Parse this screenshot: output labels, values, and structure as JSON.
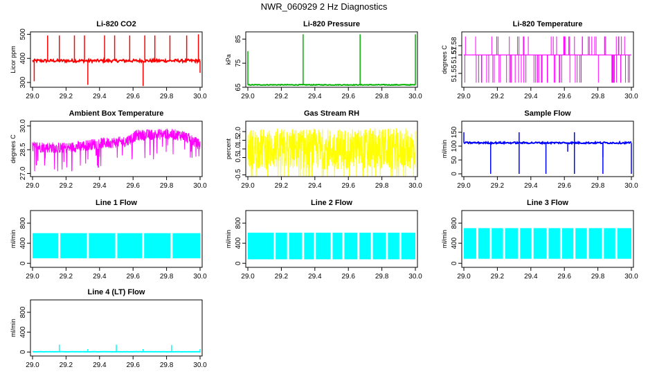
{
  "page_title": "NWR_060929  2 Hz Diagnostics",
  "chart_data": [
    {
      "id": "co2",
      "type": "line",
      "title": "Li-820 CO2",
      "ylabel": "Licor ppm",
      "color": "#ff0000",
      "xlim": [
        29.0,
        30.0
      ],
      "ylim": [
        280,
        510
      ],
      "x_ticks": [
        "29.0",
        "29.2",
        "29.4",
        "29.6",
        "29.8",
        "30.0"
      ],
      "y_ticks": [
        {
          "v": 300,
          "label": "300"
        },
        {
          "v": 400,
          "label": "400"
        },
        {
          "v": 500,
          "label": "500"
        }
      ],
      "baseline": 390,
      "noise": 6,
      "t_end": 1.0,
      "spikes": [
        {
          "x": 29.01,
          "v": 305
        },
        {
          "x": 29.09,
          "v": 495
        },
        {
          "x": 29.16,
          "v": 495
        },
        {
          "x": 29.25,
          "v": 495
        },
        {
          "x": 29.31,
          "v": 495
        },
        {
          "x": 29.33,
          "v": 290
        },
        {
          "x": 29.43,
          "v": 495
        },
        {
          "x": 29.49,
          "v": 495
        },
        {
          "x": 29.58,
          "v": 495
        },
        {
          "x": 29.66,
          "v": 285
        },
        {
          "x": 29.67,
          "v": 495
        },
        {
          "x": 29.73,
          "v": 495
        },
        {
          "x": 29.82,
          "v": 495
        },
        {
          "x": 29.92,
          "v": 495
        },
        {
          "x": 29.99,
          "v": 500
        },
        {
          "x": 30.0,
          "v": 340
        }
      ]
    },
    {
      "id": "pressure",
      "type": "line",
      "title": "Li-820 Pressure",
      "ylabel": "kPa",
      "color": "#00b000",
      "xlim": [
        29.0,
        30.0
      ],
      "ylim": [
        65,
        88
      ],
      "x_ticks": [
        "29.0",
        "29.2",
        "29.4",
        "29.6",
        "29.8",
        "30.0"
      ],
      "y_ticks": [
        {
          "v": 65,
          "label": "65"
        },
        {
          "v": 75,
          "label": "75"
        },
        {
          "v": 85,
          "label": "85"
        }
      ],
      "baseline": 66.0,
      "noise": 0.15,
      "t_end": 1.0,
      "spikes": [
        {
          "x": 29.0,
          "v": 80
        },
        {
          "x": 29.33,
          "v": 87
        },
        {
          "x": 29.67,
          "v": 87
        },
        {
          "x": 30.0,
          "v": 87
        }
      ]
    },
    {
      "id": "temp",
      "type": "binary",
      "title": "Li-820 Temperature",
      "ylabel": "degrees C",
      "color": "#ff00ff",
      "xlim": [
        29.0,
        30.0
      ],
      "ylim": [
        51.535,
        51.595
      ],
      "x_ticks": [
        "29.0",
        "29.2",
        "29.4",
        "29.6",
        "29.8",
        "30.0"
      ],
      "y_ticks": [
        {
          "v": 51.55,
          "label": "51.55"
        },
        {
          "v": 51.57,
          "label": "51.57"
        },
        {
          "v": 51.58,
          "label": "51.58"
        }
      ],
      "levels": [
        51.54,
        51.57,
        51.59
      ],
      "t_end": 1.0
    },
    {
      "id": "ambient",
      "type": "noise",
      "title": "Ambient Box Temperature",
      "ylabel": "degrees C",
      "color": "#ff00ff",
      "xlim": [
        29.0,
        30.0
      ],
      "ylim": [
        26.8,
        30.3
      ],
      "x_ticks": [
        "29.0",
        "29.2",
        "29.4",
        "29.6",
        "29.8",
        "30.0"
      ],
      "y_ticks": [
        {
          "v": 27.0,
          "label": "27.0"
        },
        {
          "v": 28.5,
          "label": "28.5"
        },
        {
          "v": 30.0,
          "label": "30.0"
        }
      ],
      "trend": [
        [
          29.0,
          28.7
        ],
        [
          29.2,
          28.6
        ],
        [
          29.4,
          28.9
        ],
        [
          29.55,
          29.0
        ],
        [
          29.62,
          29.4
        ],
        [
          29.8,
          29.5
        ],
        [
          29.9,
          29.4
        ],
        [
          30.0,
          28.8
        ]
      ],
      "noise": 0.35,
      "t_end": 1.0
    },
    {
      "id": "rh",
      "type": "noise",
      "title": "Gas Stream RH",
      "ylabel": "percent",
      "color": "#ffff00",
      "xlim": [
        29.0,
        30.0
      ],
      "ylim": [
        -0.6,
        2.6
      ],
      "x_ticks": [
        "29.0",
        "29.2",
        "29.4",
        "29.6",
        "29.8",
        "30.0"
      ],
      "y_ticks": [
        {
          "v": -0.5,
          "label": "-0.5"
        },
        {
          "v": 0.5,
          "label": "0.5"
        },
        {
          "v": 1.0,
          "label": "1.0"
        },
        {
          "v": 1.5,
          "label": "1.5"
        },
        {
          "v": 2.0,
          "label": "2.0"
        }
      ],
      "trend": [
        [
          29.0,
          1.0
        ],
        [
          30.0,
          1.0
        ]
      ],
      "noise": 1.2,
      "t_end": 1.0
    },
    {
      "id": "sample",
      "type": "line",
      "title": "Sample Flow",
      "ylabel": "ml/min",
      "color": "#0000ff",
      "xlim": [
        29.0,
        30.0
      ],
      "ylim": [
        -10,
        190
      ],
      "x_ticks": [
        "29.0",
        "29.2",
        "29.4",
        "29.6",
        "29.8",
        "30.0"
      ],
      "y_ticks": [
        {
          "v": 0,
          "label": "0"
        },
        {
          "v": 50,
          "label": "50"
        },
        {
          "v": 100,
          "label": "100"
        },
        {
          "v": 150,
          "label": "150"
        }
      ],
      "baseline": 112,
      "noise": 3,
      "t_end": 1.0,
      "spikes": [
        {
          "x": 29.0,
          "v": 150
        },
        {
          "x": 29.16,
          "v": 0
        },
        {
          "x": 29.33,
          "v": 0
        },
        {
          "x": 29.33,
          "v": 150
        },
        {
          "x": 29.49,
          "v": 0
        },
        {
          "x": 29.62,
          "v": 80
        },
        {
          "x": 29.66,
          "v": 0
        },
        {
          "x": 29.66,
          "v": 150
        },
        {
          "x": 29.83,
          "v": 0
        },
        {
          "x": 29.83,
          "v": 60
        },
        {
          "x": 30.0,
          "v": 0
        }
      ]
    },
    {
      "id": "line1",
      "type": "band",
      "title": "Line 1 Flow",
      "ylabel": "ml/min",
      "color": "#00ffff",
      "xlim": [
        29.0,
        30.0
      ],
      "ylim": [
        -80,
        1050
      ],
      "x_ticks": [
        "29.0",
        "29.2",
        "29.4",
        "29.6",
        "29.8",
        "30.0"
      ],
      "y_ticks": [
        {
          "v": 0,
          "label": "0"
        },
        {
          "v": 400,
          "label": "400"
        },
        {
          "v": 800,
          "label": "800"
        }
      ],
      "band": [
        100,
        600
      ],
      "gaps": [
        29.16,
        29.33,
        29.5,
        29.66,
        29.83
      ],
      "t_end": 1.0
    },
    {
      "id": "line2",
      "type": "band",
      "title": "Line 2 Flow",
      "ylabel": "ml/min",
      "color": "#00ffff",
      "xlim": [
        29.0,
        30.0
      ],
      "ylim": [
        -80,
        1050
      ],
      "x_ticks": [
        "29.0",
        "29.2",
        "29.4",
        "29.6",
        "29.8",
        "30.0"
      ],
      "y_ticks": [
        {
          "v": 0,
          "label": "0"
        },
        {
          "v": 400,
          "label": "400"
        },
        {
          "v": 800,
          "label": "800"
        }
      ],
      "band": [
        80,
        610
      ],
      "gaps": [
        29.16,
        29.24,
        29.33,
        29.4,
        29.5,
        29.57,
        29.66,
        29.74,
        29.83,
        29.91
      ],
      "t_end": 1.0
    },
    {
      "id": "line3",
      "type": "band",
      "title": "Line 3 Flow",
      "ylabel": "ml/min",
      "color": "#00ffff",
      "xlim": [
        29.0,
        30.0
      ],
      "ylim": [
        -80,
        1050
      ],
      "x_ticks": [
        "29.0",
        "29.2",
        "29.4",
        "29.6",
        "29.8",
        "30.0"
      ],
      "y_ticks": [
        {
          "v": 0,
          "label": "0"
        },
        {
          "v": 400,
          "label": "400"
        },
        {
          "v": 800,
          "label": "800"
        }
      ],
      "band": [
        90,
        700
      ],
      "gaps": [
        29.08,
        29.16,
        29.24,
        29.33,
        29.41,
        29.5,
        29.58,
        29.66,
        29.74,
        29.83,
        29.91
      ],
      "t_end": 1.0
    },
    {
      "id": "line4",
      "type": "line",
      "title": "Line 4 (LT) Flow",
      "ylabel": "ml/min",
      "color": "#00ffff",
      "xlim": [
        29.0,
        30.0
      ],
      "ylim": [
        -80,
        1050
      ],
      "x_ticks": [
        "29.0",
        "29.2",
        "29.4",
        "29.6",
        "29.8",
        "30.0"
      ],
      "y_ticks": [
        {
          "v": 0,
          "label": "0"
        },
        {
          "v": 400,
          "label": "400"
        },
        {
          "v": 800,
          "label": "800"
        }
      ],
      "baseline": 5,
      "noise": 2,
      "t_end": 1.0,
      "spikes": [
        {
          "x": 29.16,
          "v": 150
        },
        {
          "x": 29.33,
          "v": 60
        },
        {
          "x": 29.5,
          "v": 150
        },
        {
          "x": 29.66,
          "v": 60
        },
        {
          "x": 29.83,
          "v": 140
        },
        {
          "x": 30.0,
          "v": 60
        }
      ]
    }
  ]
}
